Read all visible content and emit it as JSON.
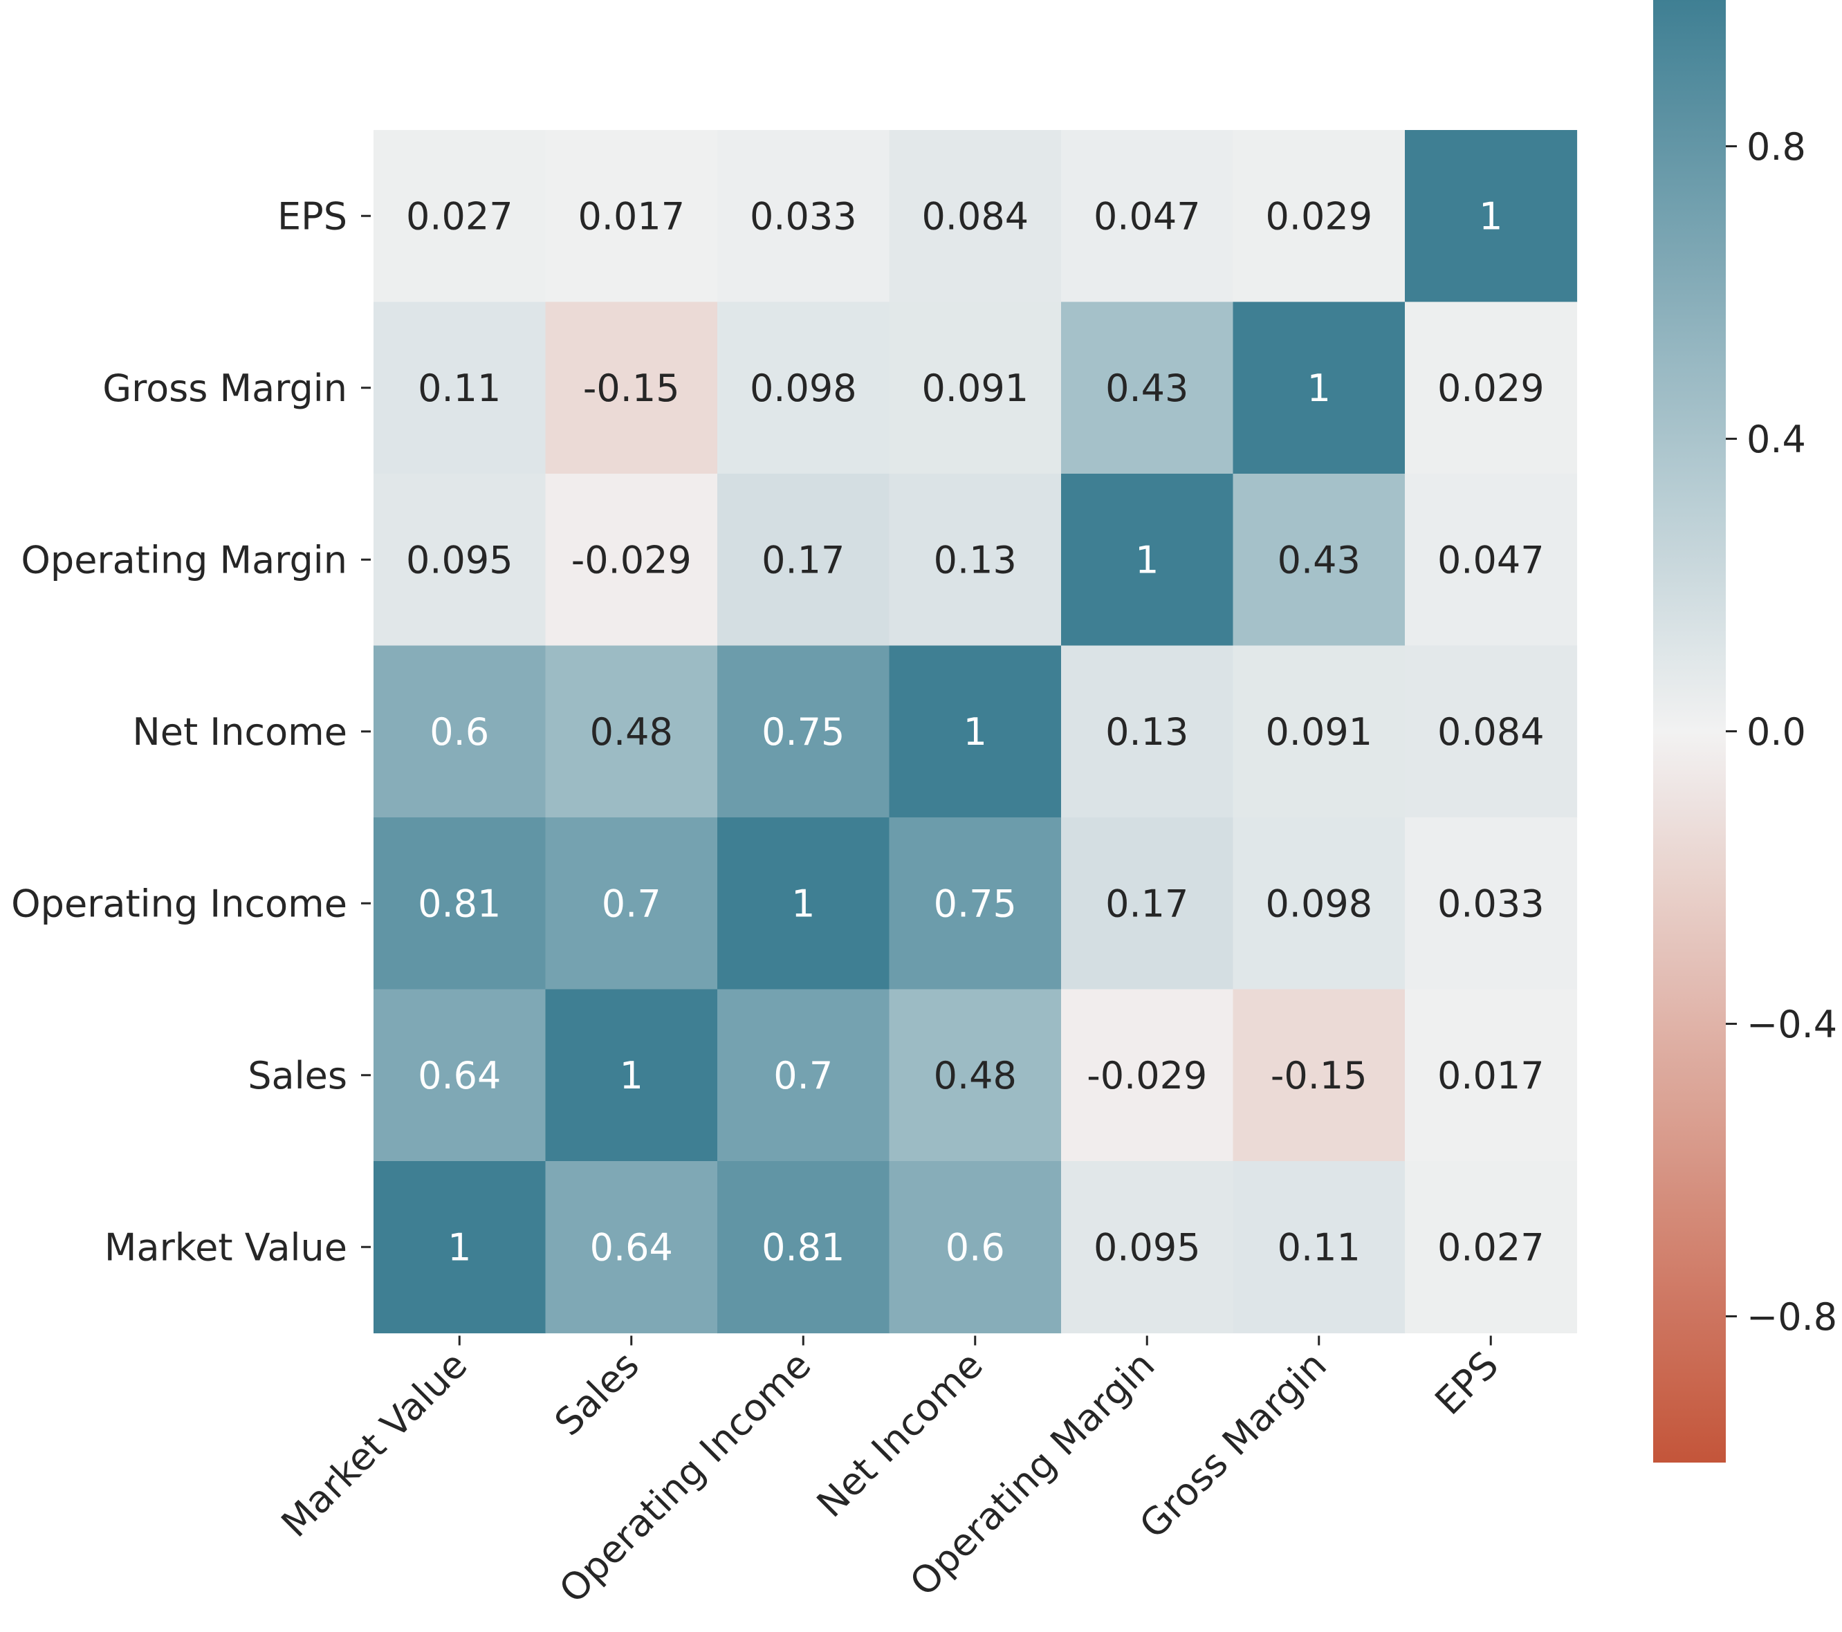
{
  "chart_data": {
    "type": "heatmap",
    "title": "",
    "xlabel": "",
    "ylabel": "",
    "columns": [
      "Market Value",
      "Sales",
      "Operating Income",
      "Net Income",
      "Operating Margin",
      "Gross Margin",
      "EPS"
    ],
    "rows": [
      "EPS",
      "Gross Margin",
      "Operating Margin",
      "Net Income",
      "Operating Income",
      "Sales",
      "Market Value"
    ],
    "values": [
      [
        0.027,
        0.017,
        0.033,
        0.084,
        0.047,
        0.029,
        1
      ],
      [
        0.11,
        -0.15,
        0.098,
        0.091,
        0.43,
        1,
        0.029
      ],
      [
        0.095,
        -0.029,
        0.17,
        0.13,
        1,
        0.43,
        0.047
      ],
      [
        0.6,
        0.48,
        0.75,
        1,
        0.13,
        0.091,
        0.084
      ],
      [
        0.81,
        0.7,
        1,
        0.75,
        0.17,
        0.098,
        0.033
      ],
      [
        0.64,
        1,
        0.7,
        0.48,
        -0.029,
        -0.15,
        0.017
      ],
      [
        1,
        0.64,
        0.81,
        0.6,
        0.095,
        0.11,
        0.027
      ]
    ],
    "value_labels": [
      [
        "0.027",
        "0.017",
        "0.033",
        "0.084",
        "0.047",
        "0.029",
        "1"
      ],
      [
        "0.11",
        "-0.15",
        "0.098",
        "0.091",
        "0.43",
        "1",
        "0.029"
      ],
      [
        "0.095",
        "-0.029",
        "0.17",
        "0.13",
        "1",
        "0.43",
        "0.047"
      ],
      [
        "0.6",
        "0.48",
        "0.75",
        "1",
        "0.13",
        "0.091",
        "0.084"
      ],
      [
        "0.81",
        "0.7",
        "1",
        "0.75",
        "0.17",
        "0.098",
        "0.033"
      ],
      [
        "0.64",
        "1",
        "0.7",
        "0.48",
        "-0.029",
        "-0.15",
        "0.017"
      ],
      [
        "1",
        "0.64",
        "0.81",
        "0.6",
        "0.095",
        "0.11",
        "0.027"
      ]
    ],
    "colorbar": {
      "range": [
        -1,
        1
      ],
      "ticks": [
        0.8,
        0.4,
        0.0,
        -0.4,
        -0.8
      ],
      "tick_labels": [
        "0.8",
        "0.4",
        "0.0",
        "−0.4",
        "−0.8"
      ],
      "colors": {
        "negative": "#c4553a",
        "center": "#f2f2f2",
        "positive": "#3f7f93"
      }
    },
    "grid": false,
    "legend": "colorbar-right"
  }
}
